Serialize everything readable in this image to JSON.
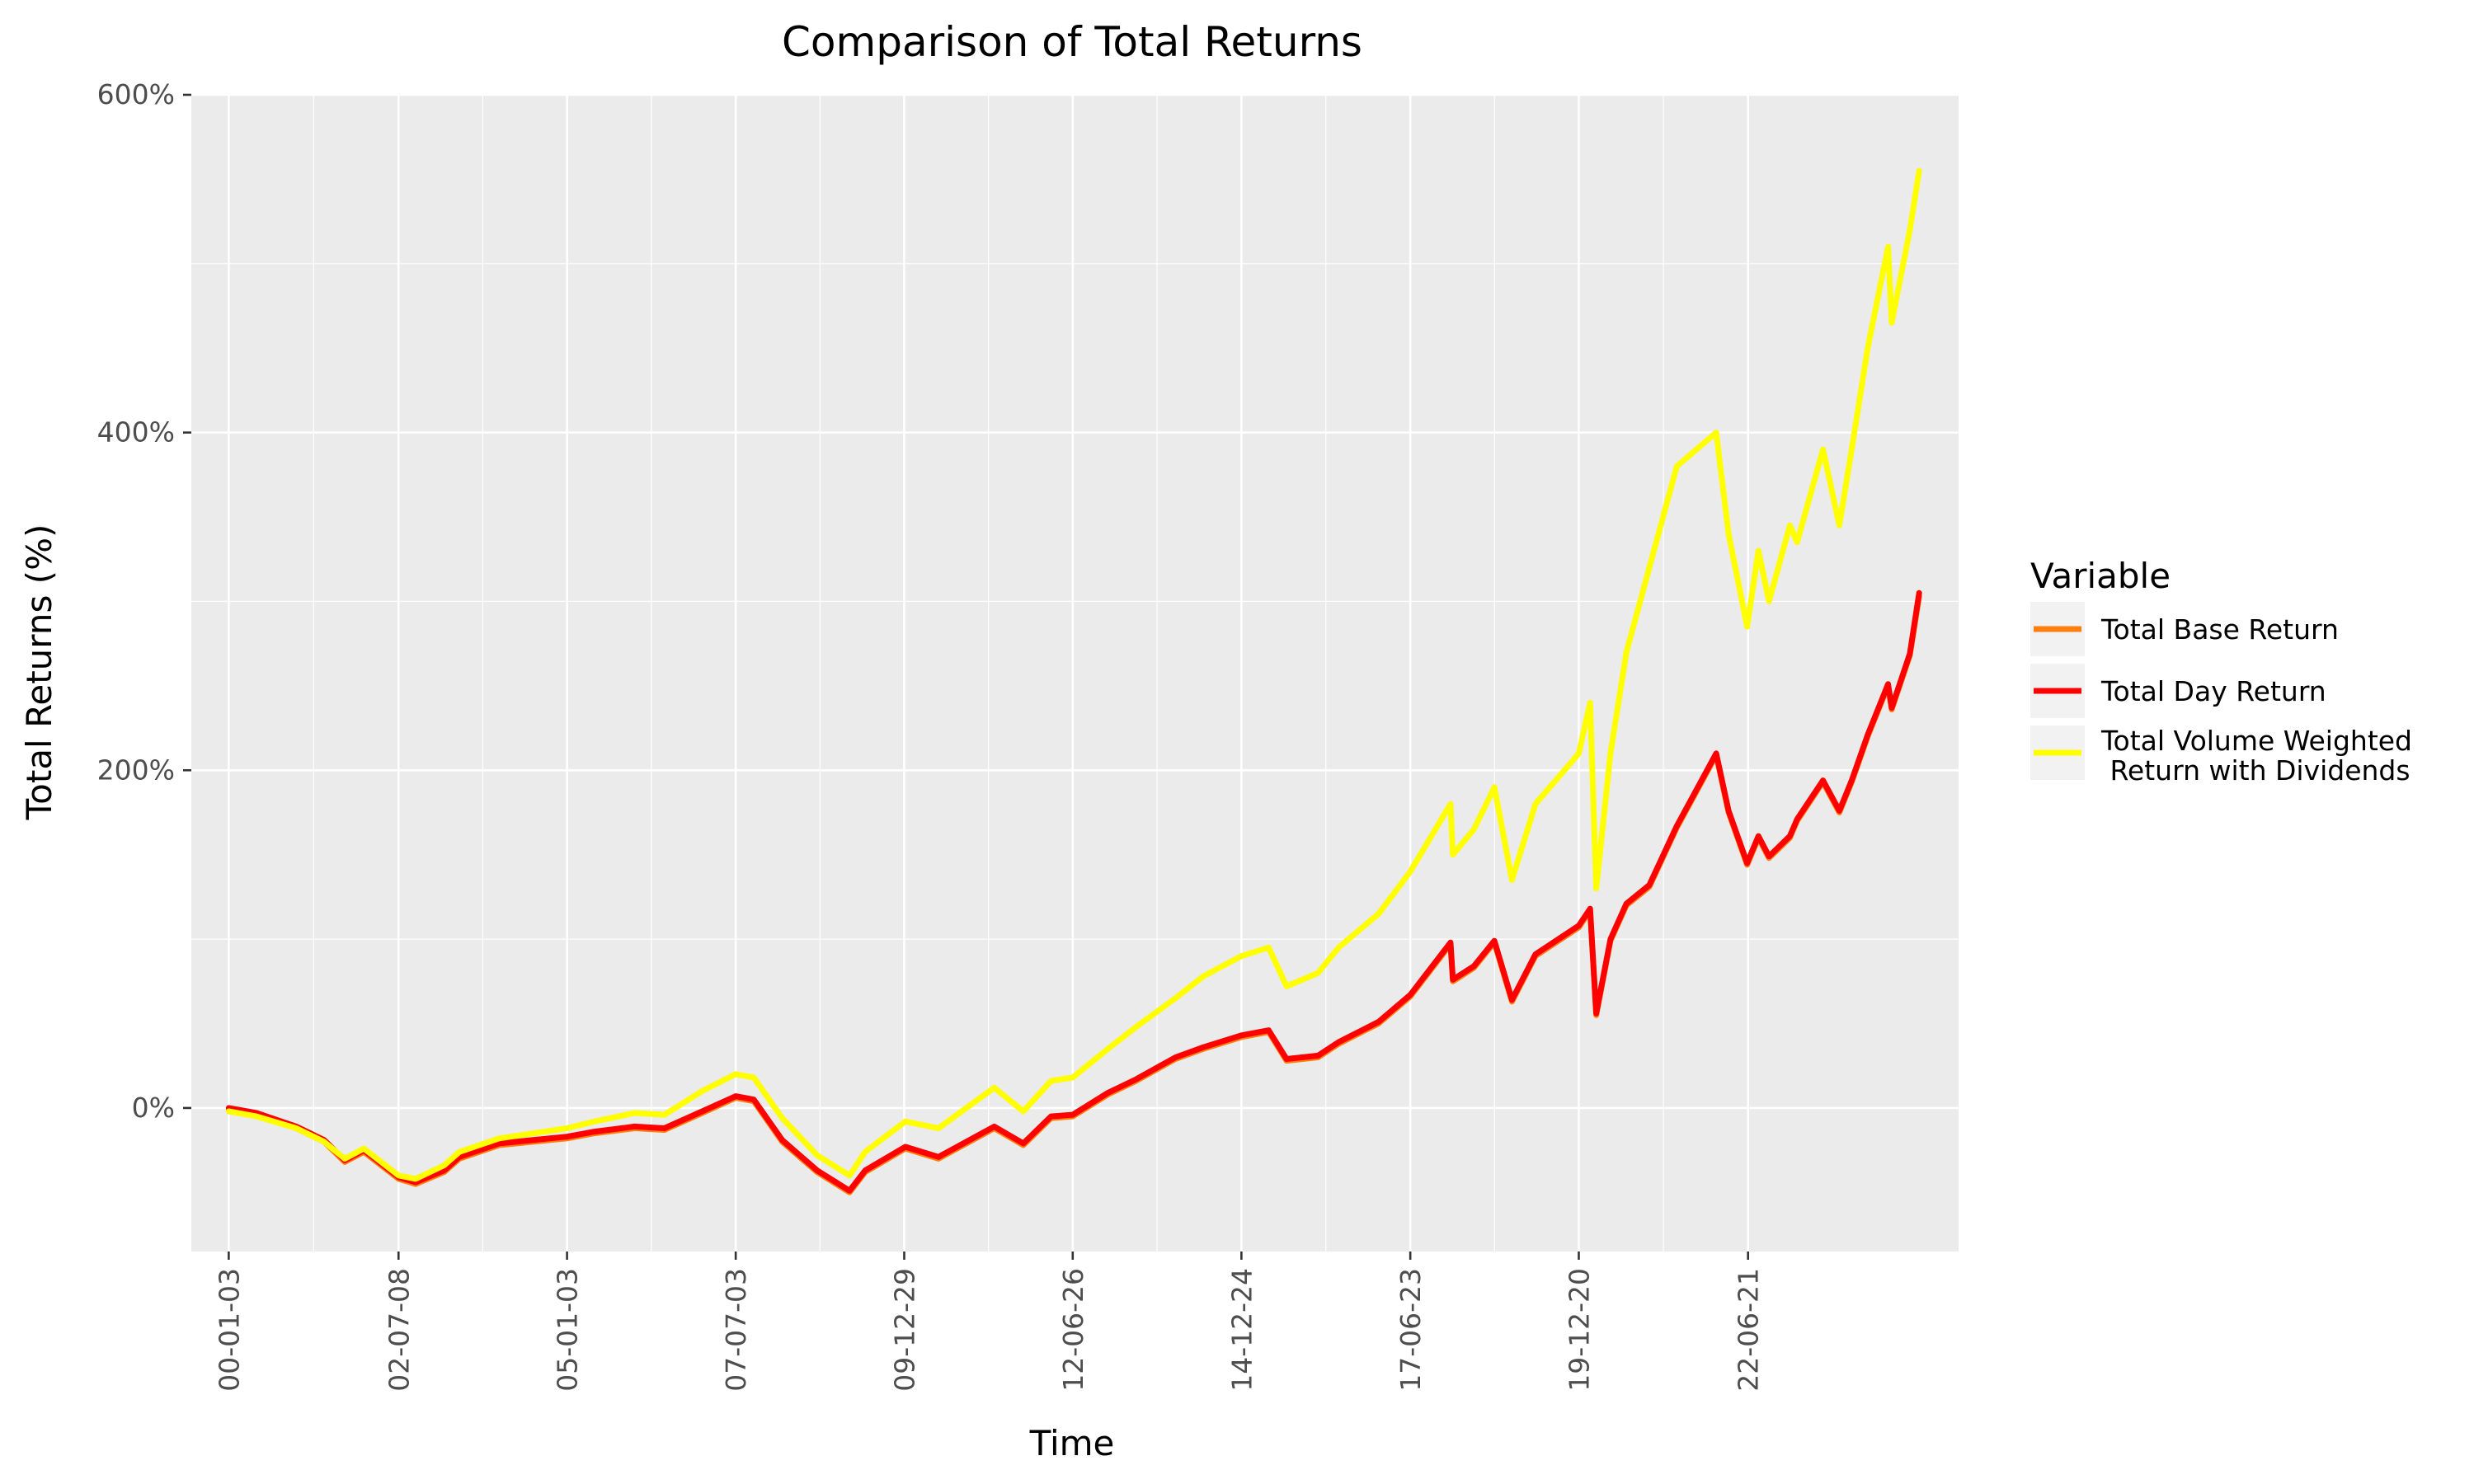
{
  "chart_data": {
    "type": "line",
    "title": "Comparison of Total Returns",
    "xlabel": "Time",
    "ylabel": "Total Returns (%)",
    "ylim": [
      -85,
      600
    ],
    "xlim": [
      "1999-06-15",
      "2025-08-01"
    ],
    "grid": true,
    "panel_background": "#EBEBEB",
    "grid_color": "#FFFFFF",
    "x_ticks": [
      {
        "date": "2000-01-03",
        "label": "00-01-03"
      },
      {
        "date": "2002-07-08",
        "label": "02-07-08"
      },
      {
        "date": "2005-01-03",
        "label": "05-01-03"
      },
      {
        "date": "2007-07-03",
        "label": "07-07-03"
      },
      {
        "date": "2009-12-29",
        "label": "09-12-29"
      },
      {
        "date": "2012-06-26",
        "label": "12-06-26"
      },
      {
        "date": "2014-12-24",
        "label": "14-12-24"
      },
      {
        "date": "2017-06-23",
        "label": "17-06-23"
      },
      {
        "date": "2019-12-20",
        "label": "19-12-20"
      },
      {
        "date": "2022-06-21",
        "label": "22-06-21"
      }
    ],
    "y_ticks": [
      {
        "value": 0,
        "label": "0%"
      },
      {
        "value": 200,
        "label": "200%"
      },
      {
        "value": 400,
        "label": "400%"
      },
      {
        "value": 600,
        "label": "600%"
      }
    ],
    "y_minor_gridlines": [
      100,
      300,
      500
    ],
    "legend": {
      "title": "Variable",
      "position": "right",
      "entries": [
        {
          "lines": [
            "Total Base Return"
          ],
          "color": "#FF7F0E"
        },
        {
          "lines": [
            "Total Day Return"
          ],
          "color": "#FF0000"
        },
        {
          "lines": [
            "Total Volume Weighted",
            " Return with Dividends"
          ],
          "color": "#FFFF00"
        }
      ]
    },
    "series": [
      {
        "name": "Total Base Return",
        "color": "#FF7F0E",
        "x": [
          "2000-01-03",
          "2000-06-01",
          "2001-01-02",
          "2001-06-01",
          "2001-09-21",
          "2002-01-02",
          "2002-07-08",
          "2002-10-09",
          "2003-03-11",
          "2003-06-02",
          "2004-01-02",
          "2005-01-03",
          "2005-06-01",
          "2006-01-03",
          "2006-06-13",
          "2007-01-03",
          "2007-07-03",
          "2007-10-09",
          "2008-03-10",
          "2008-09-15",
          "2009-03-09",
          "2009-06-01",
          "2010-01-04",
          "2010-07-02",
          "2011-04-29",
          "2011-10-03",
          "2012-03-01",
          "2012-06-26",
          "2013-01-02",
          "2013-06-03",
          "2014-01-02",
          "2014-06-02",
          "2014-12-24",
          "2015-05-20",
          "2015-08-25",
          "2016-02-11",
          "2016-06-01",
          "2017-01-03",
          "2017-06-23",
          "2018-01-26",
          "2018-02-08",
          "2018-06-01",
          "2018-09-20",
          "2018-12-24",
          "2019-04-30",
          "2019-12-20",
          "2020-02-19",
          "2020-03-23",
          "2020-06-08",
          "2020-09-02",
          "2021-01-04",
          "2021-06-01",
          "2021-12-31",
          "2022-03-08",
          "2022-06-16",
          "2022-08-16",
          "2022-10-12",
          "2023-02-02",
          "2023-03-13",
          "2023-07-31",
          "2023-10-27",
          "2024-01-02",
          "2024-03-28",
          "2024-07-16",
          "2024-08-05",
          "2024-11-11",
          "2024-12-31"
        ],
        "y": [
          -1,
          -4,
          -12,
          -20,
          -32,
          -26,
          -42,
          -45,
          -38,
          -30,
          -22,
          -18,
          -15,
          -12,
          -13,
          -3,
          6,
          4,
          -20,
          -38,
          -50,
          -38,
          -24,
          -30,
          -12,
          -22,
          -6,
          -5,
          8,
          16,
          29,
          35,
          42,
          45,
          28,
          30,
          38,
          50,
          66,
          97,
          75,
          83,
          98,
          63,
          90,
          107,
          117,
          55,
          99,
          120,
          131,
          166,
          209,
          175,
          144,
          160,
          148,
          160,
          170,
          193,
          175,
          193,
          220,
          250,
          236,
          268,
          303
        ]
      },
      {
        "name": "Total Day Return",
        "color": "#FF0000",
        "x": [
          "2000-01-03",
          "2000-06-01",
          "2001-01-02",
          "2001-06-01",
          "2001-09-21",
          "2002-01-02",
          "2002-07-08",
          "2002-10-09",
          "2003-03-11",
          "2003-06-02",
          "2004-01-02",
          "2005-01-03",
          "2005-06-01",
          "2006-01-03",
          "2006-06-13",
          "2007-01-03",
          "2007-07-03",
          "2007-10-09",
          "2008-03-10",
          "2008-09-15",
          "2009-03-09",
          "2009-06-01",
          "2010-01-04",
          "2010-07-02",
          "2011-04-29",
          "2011-10-03",
          "2012-03-01",
          "2012-06-26",
          "2013-01-02",
          "2013-06-03",
          "2014-01-02",
          "2014-06-02",
          "2014-12-24",
          "2015-05-20",
          "2015-08-25",
          "2016-02-11",
          "2016-06-01",
          "2017-01-03",
          "2017-06-23",
          "2018-01-26",
          "2018-02-08",
          "2018-06-01",
          "2018-09-20",
          "2018-12-24",
          "2019-04-30",
          "2019-12-20",
          "2020-02-19",
          "2020-03-23",
          "2020-06-08",
          "2020-09-02",
          "2021-01-04",
          "2021-06-01",
          "2021-12-31",
          "2022-03-08",
          "2022-06-16",
          "2022-08-16",
          "2022-10-12",
          "2023-02-02",
          "2023-03-13",
          "2023-07-31",
          "2023-10-27",
          "2024-01-02",
          "2024-03-28",
          "2024-07-16",
          "2024-08-05",
          "2024-11-11",
          "2024-12-31"
        ],
        "y": [
          0,
          -3,
          -11,
          -19,
          -31,
          -25,
          -41,
          -44,
          -37,
          -29,
          -21,
          -17,
          -14,
          -11,
          -12,
          -2,
          7,
          5,
          -19,
          -37,
          -49,
          -37,
          -23,
          -29,
          -11,
          -21,
          -5,
          -4,
          9,
          17,
          30,
          36,
          43,
          46,
          29,
          31,
          39,
          51,
          67,
          98,
          76,
          84,
          99,
          64,
          91,
          108,
          118,
          56,
          100,
          121,
          132,
          167,
          210,
          176,
          145,
          161,
          149,
          161,
          171,
          194,
          176,
          194,
          221,
          251,
          237,
          269,
          305
        ]
      },
      {
        "name": "Total Volume Weighted Return with Dividends",
        "color": "#FFFF00",
        "x": [
          "2000-01-03",
          "2000-06-01",
          "2001-01-02",
          "2001-06-01",
          "2001-09-21",
          "2002-01-02",
          "2002-07-08",
          "2002-10-09",
          "2003-03-11",
          "2003-06-02",
          "2004-01-02",
          "2005-01-03",
          "2005-06-01",
          "2006-01-03",
          "2006-06-13",
          "2007-01-03",
          "2007-07-03",
          "2007-10-09",
          "2008-03-10",
          "2008-09-15",
          "2009-03-09",
          "2009-06-01",
          "2010-01-04",
          "2010-07-02",
          "2011-04-29",
          "2011-10-03",
          "2012-03-01",
          "2012-06-26",
          "2013-01-02",
          "2013-06-03",
          "2014-01-02",
          "2014-06-02",
          "2014-12-24",
          "2015-05-20",
          "2015-08-25",
          "2016-02-11",
          "2016-06-01",
          "2017-01-03",
          "2017-06-23",
          "2018-01-26",
          "2018-02-08",
          "2018-06-01",
          "2018-09-20",
          "2018-12-24",
          "2019-04-30",
          "2019-12-20",
          "2020-02-19",
          "2020-03-23",
          "2020-06-08",
          "2020-09-02",
          "2021-01-04",
          "2021-06-01",
          "2021-12-31",
          "2022-03-08",
          "2022-06-16",
          "2022-08-16",
          "2022-10-12",
          "2023-02-02",
          "2023-03-13",
          "2023-07-31",
          "2023-10-27",
          "2024-01-02",
          "2024-03-28",
          "2024-07-16",
          "2024-08-05",
          "2024-11-11",
          "2024-12-31"
        ],
        "y": [
          -2,
          -5,
          -12,
          -20,
          -30,
          -24,
          -40,
          -42,
          -34,
          -26,
          -18,
          -12,
          -8,
          -3,
          -4,
          10,
          20,
          18,
          -6,
          -28,
          -40,
          -26,
          -8,
          -12,
          12,
          -2,
          16,
          18,
          35,
          48,
          65,
          78,
          90,
          95,
          72,
          80,
          95,
          115,
          140,
          180,
          150,
          165,
          190,
          135,
          180,
          210,
          240,
          130,
          210,
          270,
          320,
          380,
          400,
          340,
          285,
          330,
          300,
          345,
          335,
          390,
          345,
          390,
          450,
          510,
          465,
          520,
          555
        ]
      }
    ]
  }
}
